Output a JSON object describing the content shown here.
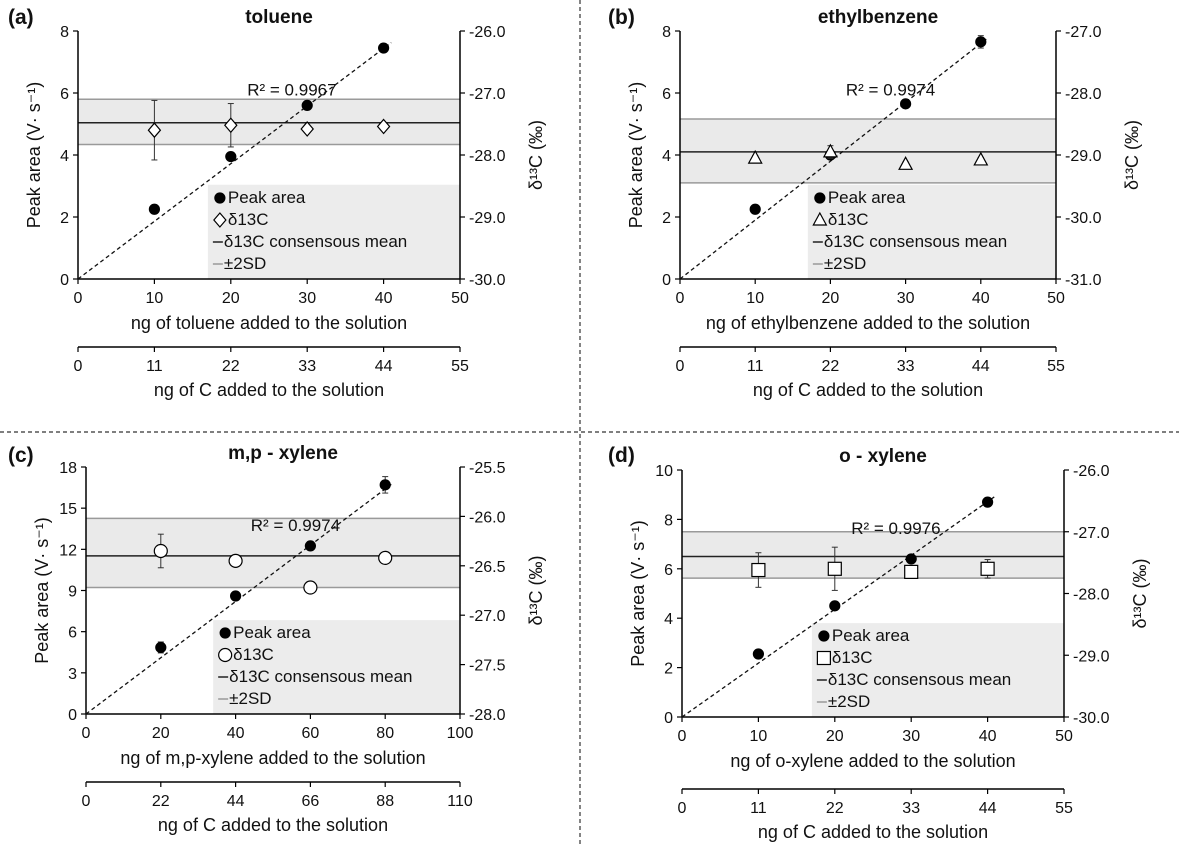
{
  "figure": {
    "colors": {
      "band": "#e6e6e6",
      "mean_line": "#222222",
      "sd_line": "#9a9a9a",
      "legend_bg": "#ececec",
      "marker": "#000000",
      "divider": "#333333"
    }
  },
  "chart_data": [
    {
      "type": "scatter",
      "panel_label": "(a)",
      "title": "toluene",
      "xlabel": "ng of toluene added to the solution",
      "x2label": "ng of C added to the solution",
      "ylabel": "Peak area (V· s⁻¹)",
      "y2label": "δ¹³C (‰)",
      "xlim": [
        0,
        50
      ],
      "xticks": [
        0,
        10,
        20,
        30,
        40,
        50
      ],
      "x2lim": [
        0,
        55
      ],
      "x2ticks": [
        0,
        11,
        22,
        33,
        44,
        55
      ],
      "ylim": [
        0,
        8
      ],
      "yticks": [
        0,
        2,
        4,
        6,
        8
      ],
      "y2lim": [
        -30.0,
        -26.0
      ],
      "y2ticks": [
        "-30.0",
        "-29.0",
        "-28.0",
        "-27.0",
        "-26.0"
      ],
      "r2_label": "R² = 0.9967",
      "delta_marker": "diamond",
      "legend": [
        "Peak area",
        "δ13C",
        "δ13C consensous mean",
        "±2SD"
      ],
      "series": [
        {
          "name": "Peak area",
          "axis": "left",
          "x": [
            10,
            20,
            30,
            40
          ],
          "y": [
            2.25,
            3.95,
            5.6,
            7.45
          ],
          "err": [
            0.08,
            0.08,
            0.1,
            0.1
          ]
        },
        {
          "name": "δ13C",
          "axis": "right",
          "x": [
            10,
            20,
            30,
            40
          ],
          "y": [
            -27.6,
            -27.52,
            -27.58,
            -27.54
          ],
          "err": [
            0.48,
            0.35,
            0.06,
            0.06
          ]
        }
      ],
      "fit": {
        "slope": 0.186,
        "intercept": 0
      },
      "consensus_mean": -27.48,
      "sd_band": [
        -27.83,
        -27.1
      ]
    },
    {
      "type": "scatter",
      "panel_label": "(b)",
      "title": "ethylbenzene",
      "xlabel": "ng of ethylbenzene added to the solution",
      "x2label": "ng of C added to the solution",
      "ylabel": "Peak area (V· s⁻¹)",
      "y2label": "δ¹³C (‰)",
      "xlim": [
        0,
        50
      ],
      "xticks": [
        0,
        10,
        20,
        30,
        40,
        50
      ],
      "x2lim": [
        0,
        55
      ],
      "x2ticks": [
        0,
        11,
        22,
        33,
        44,
        55
      ],
      "ylim": [
        0,
        8
      ],
      "yticks": [
        0,
        2,
        4,
        6,
        8
      ],
      "y2lim": [
        -31.0,
        -27.0
      ],
      "y2ticks": [
        "-31.0",
        "-30.0",
        "-29.0",
        "-28.0",
        "-27.0"
      ],
      "r2_label": "R² = 0.9974",
      "delta_marker": "triangle",
      "legend": [
        "Peak area",
        "δ13C",
        "δ13C consensous mean",
        "±2SD"
      ],
      "series": [
        {
          "name": "Peak area",
          "axis": "left",
          "x": [
            10,
            20,
            30,
            40
          ],
          "y": [
            2.25,
            4.0,
            5.65,
            7.65
          ],
          "err": [
            0.06,
            0.08,
            0.08,
            0.2
          ]
        },
        {
          "name": "δ13C",
          "axis": "right",
          "x": [
            10,
            20,
            30,
            40
          ],
          "y": [
            -29.05,
            -28.95,
            -29.15,
            -29.08
          ],
          "err": [
            0.04,
            0.1,
            0.04,
            0.04
          ]
        }
      ],
      "fit": {
        "slope": 0.19,
        "intercept": 0
      },
      "consensus_mean": -28.95,
      "sd_band": [
        -29.45,
        -28.42
      ]
    },
    {
      "type": "scatter",
      "panel_label": "(c)",
      "title": "m,p - xylene",
      "xlabel": "ng of m,p-xylene added to the solution",
      "x2label": "ng of C added to the solution",
      "ylabel": "Peak area (V· s⁻¹)",
      "y2label": "δ¹³C (‰)",
      "xlim": [
        0,
        100
      ],
      "xticks": [
        0,
        20,
        40,
        60,
        80,
        100
      ],
      "x2lim": [
        0,
        110
      ],
      "x2ticks": [
        0,
        22,
        44,
        66,
        88,
        110
      ],
      "ylim": [
        0,
        18
      ],
      "yticks": [
        0,
        3,
        6,
        9,
        12,
        15,
        18
      ],
      "y2lim": [
        -28.0,
        -25.5
      ],
      "y2ticks": [
        "-28.0",
        "-27.5",
        "-27.0",
        "-26.5",
        "-26.0",
        "-25.5"
      ],
      "r2_label": "R² = 0.9974",
      "delta_marker": "circle",
      "legend": [
        "Peak area",
        "δ13C",
        "δ13C consensous mean",
        "±2SD"
      ],
      "series": [
        {
          "name": "Peak area",
          "axis": "left",
          "x": [
            20,
            40,
            60,
            80
          ],
          "y": [
            4.85,
            8.6,
            12.25,
            16.7
          ],
          "err": [
            0.4,
            0.15,
            0.15,
            0.6
          ]
        },
        {
          "name": "δ13C",
          "axis": "right",
          "x": [
            20,
            40,
            60,
            80
          ],
          "y": [
            -26.35,
            -26.45,
            -26.72,
            -26.42
          ],
          "err": [
            0.17,
            0.02,
            0.03,
            0.02
          ]
        }
      ],
      "fit": {
        "slope": 0.205,
        "intercept": 0
      },
      "consensus_mean": -26.4,
      "sd_band": [
        -26.72,
        -26.02
      ]
    },
    {
      "type": "scatter",
      "panel_label": "(d)",
      "title": "o - xylene",
      "xlabel": "ng of o-xylene added to the solution",
      "x2label": "ng of C added to the solution",
      "ylabel": "Peak area (V· s⁻¹)",
      "y2label": "δ¹³C (‰)",
      "xlim": [
        0,
        50
      ],
      "xticks": [
        0,
        10,
        20,
        30,
        40,
        50
      ],
      "x2lim": [
        0,
        55
      ],
      "x2ticks": [
        0,
        11,
        22,
        33,
        44,
        55
      ],
      "ylim": [
        0,
        10
      ],
      "yticks": [
        0,
        2,
        4,
        6,
        8,
        10
      ],
      "y2lim": [
        -30.0,
        -26.0
      ],
      "y2ticks": [
        "-30.0",
        "-29.0",
        "-28.0",
        "-27.0",
        "-26.0"
      ],
      "r2_label": "R² = 0.9976",
      "delta_marker": "square",
      "legend": [
        "Peak area",
        "δ13C",
        "δ13C consensous mean",
        "±2SD"
      ],
      "series": [
        {
          "name": "Peak area",
          "axis": "left",
          "x": [
            10,
            20,
            30,
            40
          ],
          "y": [
            2.55,
            4.5,
            6.4,
            8.7
          ],
          "err": [
            0.08,
            0.08,
            0.1,
            0.12
          ]
        },
        {
          "name": "δ13C",
          "axis": "right",
          "x": [
            10,
            20,
            30,
            40
          ],
          "y": [
            -27.62,
            -27.6,
            -27.65,
            -27.6
          ],
          "err": [
            0.28,
            0.35,
            0.1,
            0.15
          ]
        }
      ],
      "fit": {
        "slope": 0.218,
        "intercept": 0
      },
      "consensus_mean": -27.4,
      "sd_band": [
        -27.75,
        -27.0
      ]
    }
  ]
}
